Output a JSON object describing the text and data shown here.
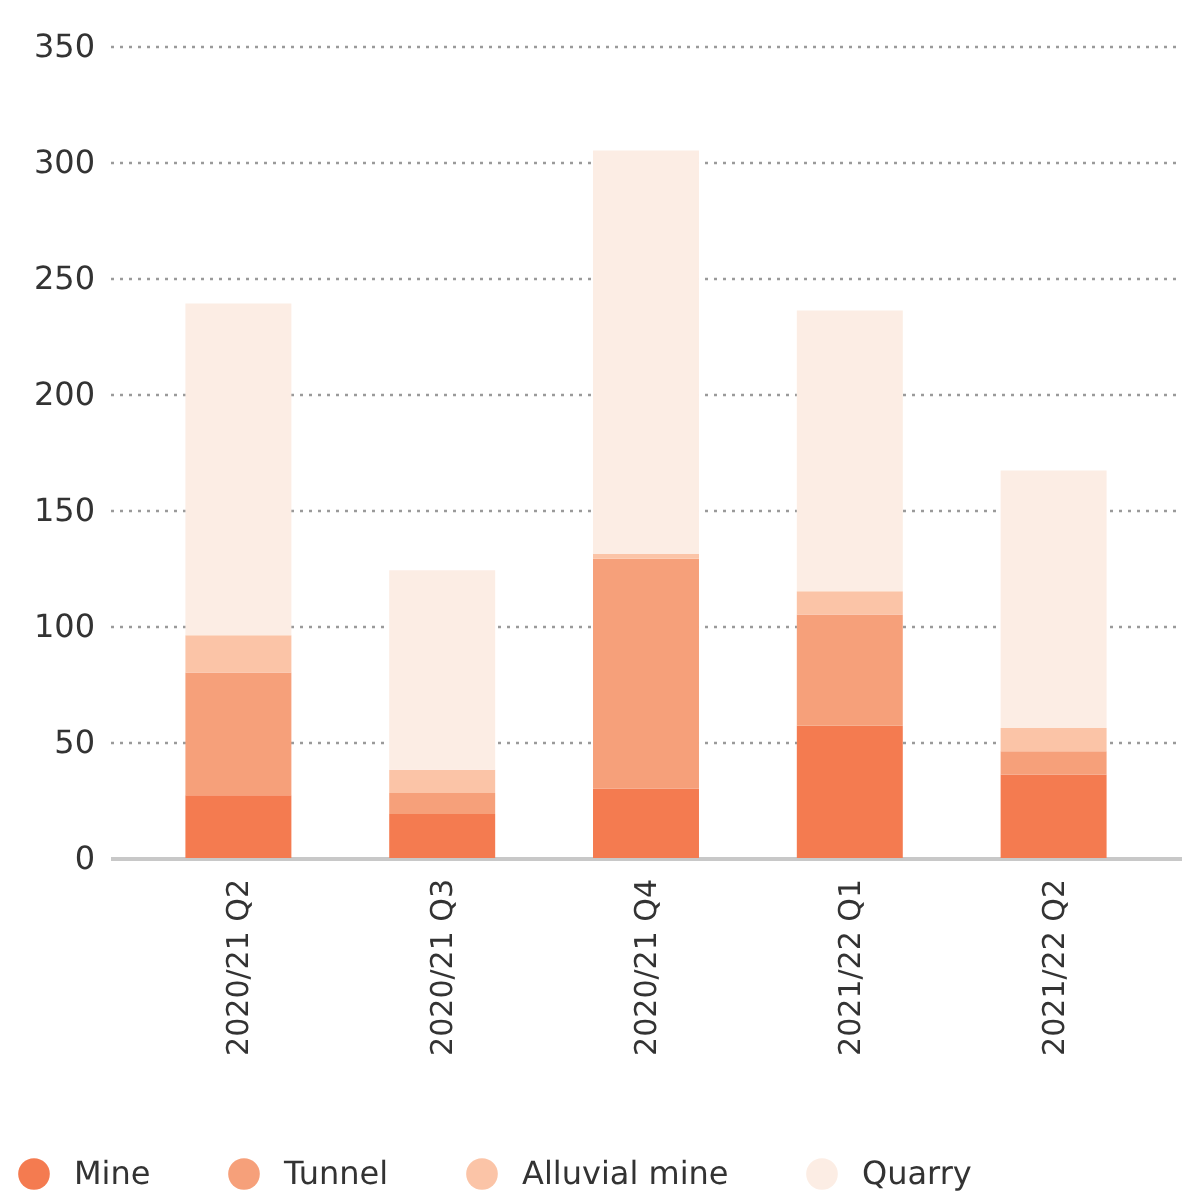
{
  "chart_data": {
    "type": "bar",
    "categories": [
      "2020/21 Q2",
      "2020/21 Q3",
      "2020/21 Q4",
      "2021/22 Q1",
      "2021/22 Q2"
    ],
    "series": [
      {
        "name": "Mine",
        "color": "#f47b50",
        "values": [
          27,
          19,
          30,
          57,
          36
        ]
      },
      {
        "name": "Tunnel",
        "color": "#f6a07a",
        "values": [
          53,
          9,
          99,
          48,
          10
        ]
      },
      {
        "name": "Alluvial mine",
        "color": "#fbc4a7",
        "values": [
          16,
          10,
          2,
          10,
          10
        ]
      },
      {
        "name": "Quarry",
        "color": "#fcede4",
        "values": [
          143,
          86,
          174,
          121,
          111
        ]
      }
    ],
    "stacked": true,
    "ylim": [
      0,
      350
    ],
    "yticks": [
      0,
      50,
      100,
      150,
      200,
      250,
      300,
      350
    ],
    "grid": "y",
    "legend": "bottom"
  }
}
